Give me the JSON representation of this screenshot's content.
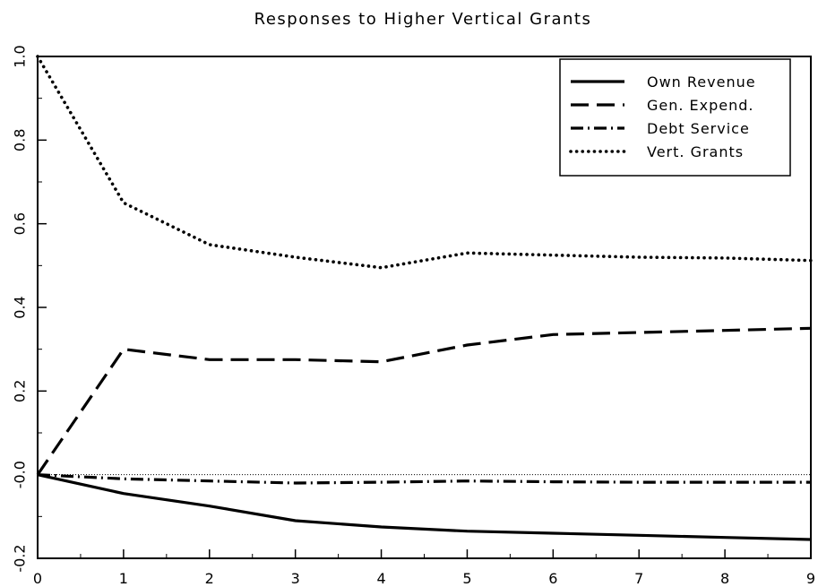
{
  "chart_data": {
    "type": "line",
    "title": "Responses to Higher Vertical Grants",
    "xlabel": "",
    "ylabel": "",
    "xlim": [
      0,
      9
    ],
    "ylim": [
      -0.2,
      1.0
    ],
    "x_ticks": [
      0,
      1,
      2,
      3,
      4,
      5,
      6,
      7,
      8,
      9
    ],
    "y_ticks": [
      -0.2,
      0.0,
      0.2,
      0.4,
      0.6,
      0.8,
      1.0
    ],
    "y_tick_labels": [
      "-0.2",
      "-0.0",
      "0.2",
      "0.4",
      "0.6",
      "0.8",
      "1.0"
    ],
    "grid": false,
    "zero_line": true,
    "legend_position": "top-right",
    "x": [
      0,
      1,
      2,
      3,
      4,
      5,
      6,
      7,
      8,
      9
    ],
    "series": [
      {
        "name": "Own Revenue",
        "style": "solid",
        "values": [
          0.0,
          -0.045,
          -0.075,
          -0.11,
          -0.125,
          -0.135,
          -0.14,
          -0.145,
          -0.15,
          -0.155
        ]
      },
      {
        "name": "Gen. Expend.",
        "style": "dashed",
        "values": [
          0.0,
          0.3,
          0.275,
          0.275,
          0.27,
          0.31,
          0.335,
          0.34,
          0.345,
          0.35
        ]
      },
      {
        "name": "Debt Service",
        "style": "dashdot",
        "values": [
          0.0,
          -0.01,
          -0.015,
          -0.02,
          -0.018,
          -0.015,
          -0.017,
          -0.018,
          -0.018,
          -0.018
        ]
      },
      {
        "name": "Vert. Grants",
        "style": "dotted",
        "values": [
          1.0,
          0.65,
          0.55,
          0.52,
          0.495,
          0.53,
          0.525,
          0.52,
          0.518,
          0.512
        ]
      }
    ]
  }
}
